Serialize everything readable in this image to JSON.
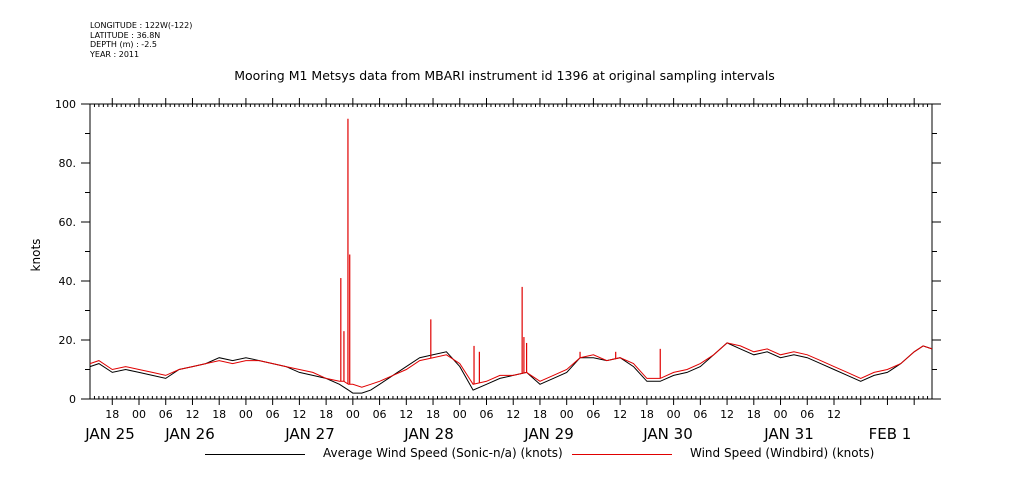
{
  "header": {
    "longitude": "LONGITUDE : 122W(-122)",
    "latitude": "LATITUDE : 36.8N",
    "depth": "DEPTH (m) : -2.5",
    "year": "YEAR : 2011"
  },
  "chart_data": {
    "type": "line",
    "title": "Mooring M1 Metsys data from MBARI instrument id 1396 at original sampling intervals",
    "xlabel": "",
    "ylabel": "knots",
    "ylim": [
      0,
      100
    ],
    "y_ticks": [
      "0",
      "20.",
      "40.",
      "60.",
      "80.",
      "100"
    ],
    "x_range_hours": [
      13,
      202
    ],
    "x_hour_ticks": [
      "18",
      "00",
      "06",
      "12",
      "18",
      "00",
      "06",
      "12",
      "18",
      "00",
      "06",
      "12",
      "18",
      "00",
      "06",
      "12",
      "18",
      "00",
      "06",
      "12",
      "18",
      "00",
      "06",
      "12",
      "18",
      "00",
      "06",
      "12"
    ],
    "x_day_labels": [
      "JAN 25",
      "JAN 26",
      "JAN 27",
      "JAN 28",
      "JAN 29",
      "JAN 30",
      "JAN 31",
      "FEB  1"
    ],
    "grid": false,
    "legend_position": "bottom",
    "colors": {
      "avg": "#000000",
      "windbird": "#e00000"
    },
    "series": [
      {
        "name": "Average Wind Speed (Sonic-n/a) (knots)",
        "x_hours": [
          13,
          15,
          18,
          21,
          24,
          27,
          30,
          33,
          36,
          39,
          42,
          45,
          48,
          51,
          54,
          57,
          60,
          63,
          66,
          69,
          70,
          71,
          72,
          74,
          76,
          78,
          81,
          84,
          87,
          90,
          93,
          96,
          99,
          102,
          105,
          108,
          111,
          114,
          117,
          120,
          123,
          126,
          129,
          132,
          135,
          138,
          141,
          144,
          147,
          150,
          153,
          156,
          159,
          162,
          165,
          168,
          171,
          174,
          177,
          180,
          183,
          186,
          189,
          192,
          195,
          198,
          200,
          202
        ],
        "values": [
          11,
          12,
          9,
          10,
          9,
          8,
          7,
          10,
          11,
          12,
          14,
          13,
          14,
          13,
          12,
          11,
          9,
          8,
          7,
          5,
          4,
          3,
          2,
          2,
          3,
          5,
          8,
          11,
          14,
          15,
          16,
          11,
          3,
          5,
          7,
          8,
          9,
          5,
          7,
          9,
          14,
          14,
          13,
          14,
          11,
          6,
          6,
          8,
          9,
          11,
          15,
          19,
          17,
          15,
          16,
          14,
          15,
          14,
          12,
          10,
          8,
          6,
          8,
          9,
          12,
          16,
          18,
          17
        ]
      },
      {
        "name": "Wind Speed (Windbird) (knots)",
        "x_hours": [
          13,
          15,
          18,
          21,
          24,
          27,
          30,
          33,
          36,
          39,
          42,
          45,
          48,
          51,
          54,
          57,
          60,
          63,
          66,
          69,
          70,
          71,
          72,
          74,
          76,
          78,
          81,
          84,
          87,
          90,
          93,
          96,
          99,
          102,
          105,
          108,
          111,
          114,
          117,
          120,
          123,
          126,
          129,
          132,
          135,
          138,
          141,
          144,
          147,
          150,
          153,
          156,
          159,
          162,
          165,
          168,
          171,
          174,
          177,
          180,
          183,
          186,
          189,
          192,
          195,
          198,
          200,
          202
        ],
        "values": [
          12,
          13,
          10,
          11,
          10,
          9,
          8,
          10,
          11,
          12,
          13,
          12,
          13,
          13,
          12,
          11,
          10,
          9,
          7,
          6,
          6,
          5,
          5,
          4,
          5,
          6,
          8,
          10,
          13,
          14,
          15,
          12,
          5,
          6,
          8,
          8,
          9,
          6,
          8,
          10,
          14,
          15,
          13,
          14,
          12,
          7,
          7,
          9,
          10,
          12,
          15,
          19,
          18,
          16,
          17,
          15,
          16,
          15,
          13,
          11,
          9,
          7,
          9,
          10,
          12,
          16,
          18,
          17
        ],
        "spikes": [
          {
            "x_hour": 69.3,
            "value": 41
          },
          {
            "x_hour": 70.0,
            "value": 23
          },
          {
            "x_hour": 70.9,
            "value": 95
          },
          {
            "x_hour": 71.3,
            "value": 49
          },
          {
            "x_hour": 89.5,
            "value": 27
          },
          {
            "x_hour": 99.2,
            "value": 18
          },
          {
            "x_hour": 100.4,
            "value": 16
          },
          {
            "x_hour": 110.0,
            "value": 38
          },
          {
            "x_hour": 110.4,
            "value": 21
          },
          {
            "x_hour": 111.0,
            "value": 19
          },
          {
            "x_hour": 123.0,
            "value": 16
          },
          {
            "x_hour": 131.0,
            "value": 16
          },
          {
            "x_hour": 141.0,
            "value": 17
          }
        ]
      }
    ]
  }
}
